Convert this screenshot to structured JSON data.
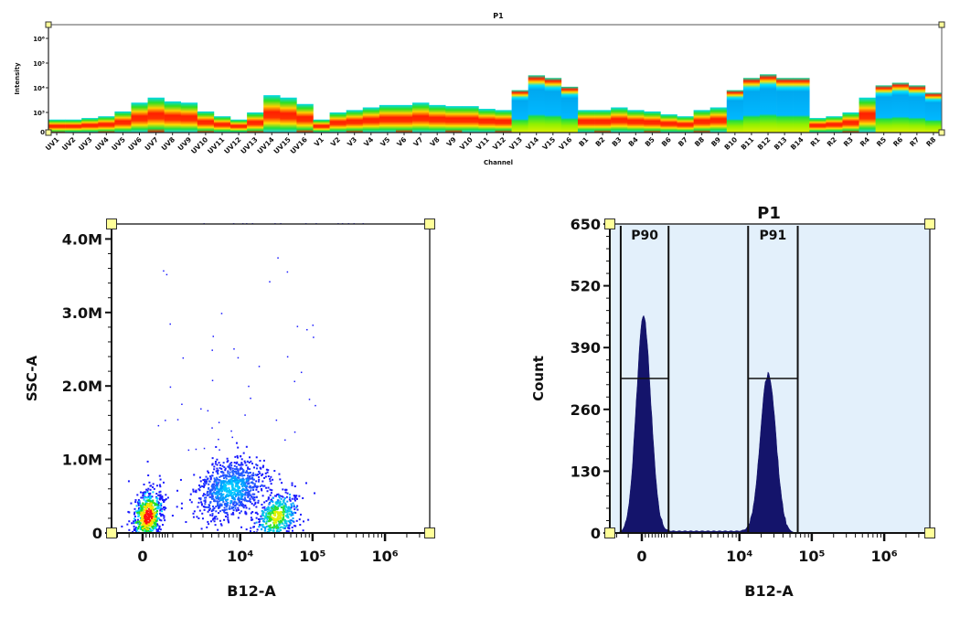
{
  "colors": {
    "handle": "#ffff99",
    "histogram_fill": "#14146b",
    "histogram_bg": "#e3f0fb",
    "scatter_low": "#1a1aff",
    "axis": "#222222"
  },
  "chart_data": [
    {
      "type": "heatmap",
      "title": "P1",
      "xlabel": "Channel",
      "ylabel": "Intensity",
      "yscale": "biexponential",
      "yticks": [
        "0",
        "10³",
        "10⁴",
        "10⁵",
        "10⁶"
      ],
      "channels": [
        "UV1",
        "UV2",
        "UV3",
        "UV4",
        "UV5",
        "UV6",
        "UV7",
        "UV8",
        "UV9",
        "UV10",
        "UV11",
        "UV12",
        "UV13",
        "UV14",
        "UV15",
        "UV16",
        "V1",
        "V2",
        "V3",
        "V4",
        "V5",
        "V6",
        "V7",
        "V8",
        "V9",
        "V10",
        "V11",
        "V12",
        "V13",
        "V14",
        "V15",
        "V16",
        "B1",
        "B2",
        "B3",
        "B4",
        "B5",
        "B6",
        "B7",
        "B8",
        "B9",
        "B10",
        "B11",
        "B12",
        "B13",
        "B14",
        "R1",
        "R2",
        "R3",
        "R4",
        "R5",
        "R6",
        "R7",
        "R8"
      ],
      "max_intensity": [
        630,
        630,
        710,
        800,
        1100,
        2500,
        4000,
        2800,
        2500,
        1100,
        800,
        630,
        1000,
        5000,
        4000,
        2200,
        630,
        1000,
        1250,
        1600,
        2000,
        2000,
        2500,
        2000,
        1800,
        1800,
        1400,
        1250,
        8000,
        32000,
        25000,
        11000,
        1250,
        1250,
        1600,
        1250,
        1100,
        900,
        800,
        1250,
        1600,
        8000,
        25000,
        35000,
        25000,
        25000,
        710,
        800,
        1000,
        4000,
        12500,
        16000,
        12500,
        6300
      ]
    },
    {
      "type": "scatter",
      "xlabel": "B12-A",
      "ylabel": "SSC-A",
      "xscale": "biexponential",
      "xlim": [
        -1000,
        4000000
      ],
      "ylim": [
        0,
        4200000
      ],
      "xticks": [
        {
          "value": 0,
          "label": "0"
        },
        {
          "value": 10000,
          "label": "10⁴"
        },
        {
          "value": 100000,
          "label": "10⁵"
        },
        {
          "value": 1000000,
          "label": "10⁶"
        }
      ],
      "yticks": [
        {
          "value": 0,
          "label": "0"
        },
        {
          "value": 1000000,
          "label": "1.0M"
        },
        {
          "value": 2000000,
          "label": "2.0M"
        },
        {
          "value": 3000000,
          "label": "3.0M"
        },
        {
          "value": 4000000,
          "label": "4.0M"
        }
      ],
      "populations": [
        {
          "b12_a": 160,
          "ssc_a": 230000,
          "events": 700
        },
        {
          "b12_a": 7500,
          "ssc_a": 600000,
          "events": 900
        },
        {
          "b12_a": 32000,
          "ssc_a": 220000,
          "events": 500
        }
      ]
    },
    {
      "type": "area",
      "title": "P1",
      "xlabel": "B12-A",
      "ylabel": "Count",
      "xscale": "biexponential",
      "xlim": [
        -1000,
        4900000
      ],
      "ylim": [
        0,
        650
      ],
      "xticks": [
        {
          "value": 0,
          "label": "0"
        },
        {
          "value": 10000,
          "label": "10⁴"
        },
        {
          "value": 100000,
          "label": "10⁵"
        },
        {
          "value": 1000000,
          "label": "10⁶"
        }
      ],
      "yticks": [
        {
          "value": 0,
          "label": "0"
        },
        {
          "value": 130,
          "label": "130"
        },
        {
          "value": 260,
          "label": "260"
        },
        {
          "value": 390,
          "label": "390"
        },
        {
          "value": 520,
          "label": "520"
        },
        {
          "value": 650,
          "label": "650"
        }
      ],
      "peaks": [
        {
          "center": 50,
          "count": 455
        },
        {
          "center": 25000,
          "count": 335
        }
      ],
      "gates": [
        {
          "name": "P90",
          "min": -650,
          "max": 860,
          "level": 325
        },
        {
          "name": "P91",
          "min": 13200,
          "max": 64000,
          "level": 325
        }
      ]
    }
  ]
}
